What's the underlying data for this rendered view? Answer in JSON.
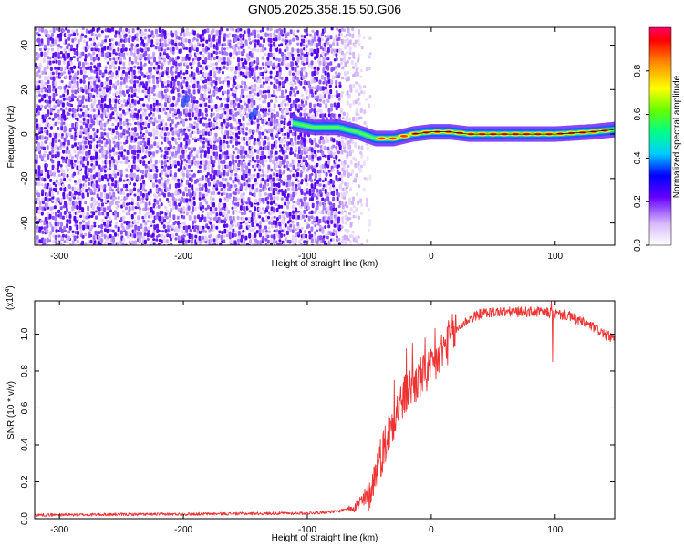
{
  "title": "GN05.2025.358.15.50.G06",
  "colors": {
    "axis": "#000000",
    "line": "#ee3333",
    "background": "#ffffff"
  },
  "chart_data": [
    {
      "type": "heatmap",
      "title": "GN05.2025.358.15.50.G06",
      "xlabel": "Height of straight line (km)",
      "ylabel": "Frequency (Hz)",
      "xlim": [
        -320,
        148
      ],
      "ylim": [
        -50,
        48
      ],
      "xticks": [
        -300,
        -200,
        -100,
        0,
        100
      ],
      "yticks": [
        -40,
        -20,
        0,
        20,
        40
      ],
      "noise_region_km": [
        -320,
        -75
      ],
      "fade_region_km": [
        -75,
        -50
      ],
      "signal_path": [
        {
          "x": -112,
          "f": 5
        },
        {
          "x": -95,
          "f": 3
        },
        {
          "x": -75,
          "f": 3
        },
        {
          "x": -60,
          "f": 1
        },
        {
          "x": -45,
          "f": -2
        },
        {
          "x": -30,
          "f": -2
        },
        {
          "x": -15,
          "f": 0
        },
        {
          "x": 0,
          "f": 1
        },
        {
          "x": 15,
          "f": 1
        },
        {
          "x": 30,
          "f": 0
        },
        {
          "x": 60,
          "f": 0
        },
        {
          "x": 100,
          "f": 0
        },
        {
          "x": 130,
          "f": 1
        },
        {
          "x": 148,
          "f": 2
        }
      ],
      "colorbar": {
        "label": "Normalized spectral amplitude",
        "range": [
          0.0,
          1.0
        ],
        "ticks": [
          "0.0",
          "0.2",
          "0.4",
          "0.6",
          "0.8"
        ]
      }
    },
    {
      "type": "line",
      "xlabel": "Height of straight line (km)",
      "ylabel": "SNR (10 * v/v)",
      "y_scale_label": "(x10",
      "y_scale_exp": "4",
      "y_scale_close": ")",
      "xlim": [
        -320,
        148
      ],
      "ylim": [
        0.0,
        1.18
      ],
      "xticks": [
        -300,
        -200,
        -100,
        0,
        100
      ],
      "yticks": [
        "0.0",
        "0.2",
        "0.4",
        "0.6",
        "0.8",
        "1.0"
      ],
      "series": [
        {
          "name": "SNR",
          "x": [
            -320,
            -200,
            -100,
            -75,
            -60,
            -50,
            -45,
            -40,
            -35,
            -30,
            -25,
            -20,
            -15,
            -10,
            -5,
            0,
            10,
            20,
            30,
            40,
            50,
            60,
            70,
            80,
            90,
            100,
            110,
            120,
            130,
            140,
            148
          ],
          "y": [
            0.02,
            0.025,
            0.03,
            0.04,
            0.07,
            0.12,
            0.25,
            0.35,
            0.45,
            0.55,
            0.62,
            0.68,
            0.72,
            0.75,
            0.78,
            0.8,
            0.92,
            1.02,
            1.08,
            1.11,
            1.12,
            1.12,
            1.12,
            1.12,
            1.12,
            1.11,
            1.1,
            1.07,
            1.04,
            1.0,
            0.97
          ]
        }
      ],
      "spikes": [
        {
          "x": -30,
          "y": 0.75
        },
        {
          "x": -20,
          "y": 0.92
        },
        {
          "x": -15,
          "y": 0.95
        },
        {
          "x": -5,
          "y": 0.98
        },
        {
          "x": 3,
          "y": 1.03
        },
        {
          "x": 8,
          "y": 0.95
        },
        {
          "x": 97,
          "y": 1.18
        },
        {
          "x": 98,
          "y": 0.85
        }
      ]
    }
  ]
}
